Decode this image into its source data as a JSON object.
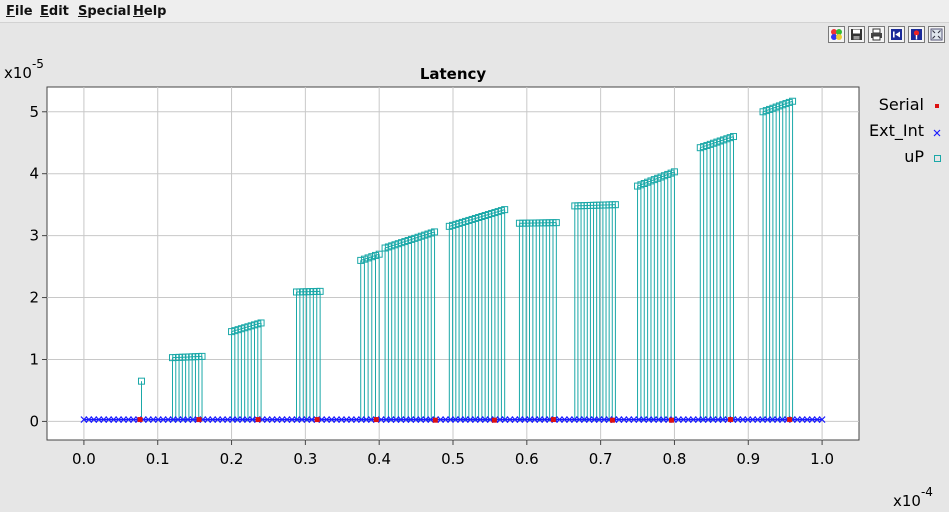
{
  "menu": {
    "file": {
      "u": "F",
      "rest": "ile"
    },
    "edit": {
      "u": "E",
      "rest": "dit"
    },
    "special": {
      "u": "S",
      "rest": "pecial"
    },
    "help": {
      "u": "H",
      "rest": "elp"
    }
  },
  "toolbar": {
    "icons": [
      "palette-icon",
      "save-icon",
      "print-icon",
      "first-frame-icon",
      "marker-tool-icon",
      "fit-view-icon"
    ]
  },
  "colors": {
    "serial": "#dd1111",
    "ext_int": "#1a1aff",
    "up": "#1aa8a8",
    "grid": "#c8c8c8",
    "plot_bg": "#ffffff",
    "window_bg": "#e6e6e6"
  },
  "chart_data": {
    "type": "scatter",
    "title": "Latency",
    "xlabel": "",
    "ylabel": "",
    "x_multiplier": {
      "base": "x10",
      "exp": "-4"
    },
    "y_multiplier": {
      "base": "x10",
      "exp": "-5"
    },
    "xlim": [
      -0.05,
      1.05
    ],
    "ylim": [
      -0.3,
      5.4
    ],
    "x_ticks": [
      "0.0",
      "0.1",
      "0.2",
      "0.3",
      "0.4",
      "0.5",
      "0.6",
      "0.7",
      "0.8",
      "0.9",
      "1.0"
    ],
    "y_ticks": [
      "0",
      "1",
      "2",
      "3",
      "4",
      "5"
    ],
    "grid": true,
    "legend_position": "right",
    "series": [
      {
        "name": "Serial",
        "marker": "filled-square",
        "x": [
          0.076,
          0.156,
          0.236,
          0.316,
          0.396,
          0.476,
          0.556,
          0.636,
          0.716,
          0.796,
          0.876,
          0.956
        ],
        "y": [
          0.03,
          0.03,
          0.03,
          0.03,
          0.03,
          0.02,
          0.02,
          0.03,
          0.02,
          0.02,
          0.03,
          0.03
        ]
      },
      {
        "name": "Ext_Int",
        "marker": "cross",
        "x_range": [
          0.0,
          1.0
        ],
        "y_level": 0.03,
        "count": 150
      },
      {
        "name": "uP",
        "marker": "open-square",
        "baseline": 0.0,
        "isolated": {
          "x": 0.078,
          "y": 0.65
        },
        "groups": [
          {
            "x_start": 0.12,
            "x_end": 0.16,
            "y_start": 1.03,
            "y_end": 1.05
          },
          {
            "x_start": 0.2,
            "x_end": 0.24,
            "y_start": 1.45,
            "y_end": 1.59
          },
          {
            "x_start": 0.288,
            "x_end": 0.32,
            "y_start": 2.09,
            "y_end": 2.1
          },
          {
            "x_start": 0.375,
            "x_end": 0.4,
            "y_start": 2.6,
            "y_end": 2.7
          },
          {
            "x_start": 0.408,
            "x_end": 0.475,
            "y_start": 2.8,
            "y_end": 3.06
          },
          {
            "x_start": 0.495,
            "x_end": 0.57,
            "y_start": 3.15,
            "y_end": 3.42
          },
          {
            "x_start": 0.59,
            "x_end": 0.64,
            "y_start": 3.2,
            "y_end": 3.21
          },
          {
            "x_start": 0.665,
            "x_end": 0.72,
            "y_start": 3.48,
            "y_end": 3.5
          },
          {
            "x_start": 0.75,
            "x_end": 0.8,
            "y_start": 3.8,
            "y_end": 4.03
          },
          {
            "x_start": 0.835,
            "x_end": 0.88,
            "y_start": 4.42,
            "y_end": 4.6
          },
          {
            "x_start": 0.92,
            "x_end": 0.96,
            "y_start": 5.0,
            "y_end": 5.17
          }
        ]
      }
    ]
  }
}
